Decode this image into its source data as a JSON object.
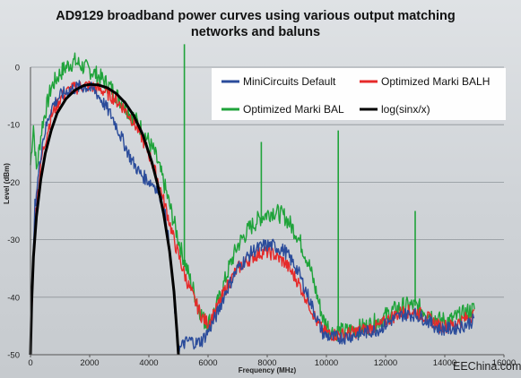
{
  "chart_data": {
    "type": "line",
    "title_lines": [
      "AD9129 broadband power curves using various output matching",
      "networks and baluns"
    ],
    "xlabel": "Frequency (MHz)",
    "ylabel": "Level (dBm)",
    "xlim": [
      0,
      16000
    ],
    "ylim": [
      -50,
      0
    ],
    "x_ticks": [
      "0",
      "2000",
      "4000",
      "6000",
      "8000",
      "10000",
      "12000",
      "14000",
      "16000"
    ],
    "y_ticks": [
      "0",
      "-10",
      "-20",
      "-30",
      "-40",
      "-50"
    ],
    "grid": "horizontal",
    "legend_position": "top-right",
    "series": [
      {
        "name": "MiniCircuits Default",
        "color": "#2b4c9b",
        "noise": 0.6,
        "points": [
          [
            0,
            -50
          ],
          [
            150,
            -24
          ],
          [
            400,
            -13
          ],
          [
            700,
            -7
          ],
          [
            1000,
            -5
          ],
          [
            1300,
            -4
          ],
          [
            1600,
            -3.5
          ],
          [
            1900,
            -3.4
          ],
          [
            2200,
            -4.2
          ],
          [
            2500,
            -6.5
          ],
          [
            2800,
            -9
          ],
          [
            3100,
            -12.5
          ],
          [
            3400,
            -16
          ],
          [
            3700,
            -18.5
          ],
          [
            4000,
            -19.8
          ],
          [
            4200,
            -20.5
          ],
          [
            4400,
            -22.5
          ],
          [
            4600,
            -27
          ],
          [
            4800,
            -37
          ],
          [
            4950,
            -47
          ],
          [
            5050,
            -49
          ],
          [
            5200,
            -48
          ],
          [
            5400,
            -47.5
          ],
          [
            5600,
            -48
          ],
          [
            5800,
            -47.5
          ],
          [
            6000,
            -46
          ],
          [
            6300,
            -43
          ],
          [
            6600,
            -39
          ],
          [
            7000,
            -35
          ],
          [
            7500,
            -32
          ],
          [
            7900,
            -31
          ],
          [
            8200,
            -31
          ],
          [
            8600,
            -32
          ],
          [
            9000,
            -35
          ],
          [
            9400,
            -40
          ],
          [
            9700,
            -44
          ],
          [
            9900,
            -46.5
          ],
          [
            10200,
            -47
          ],
          [
            10600,
            -47
          ],
          [
            11000,
            -46.5
          ],
          [
            11400,
            -46
          ],
          [
            11800,
            -45.5
          ],
          [
            12200,
            -44
          ],
          [
            12600,
            -43
          ],
          [
            13000,
            -43
          ],
          [
            13400,
            -44
          ],
          [
            13800,
            -45.5
          ],
          [
            14200,
            -45.5
          ],
          [
            14600,
            -45
          ],
          [
            15000,
            -44
          ]
        ],
        "spikes": [
          [
            5200,
            -47.5
          ],
          [
            7800,
            -32
          ],
          [
            10400,
            -47
          ]
        ]
      },
      {
        "name": "Optimized Marki BALH",
        "color": "#e62a2a",
        "noise": 0.6,
        "points": [
          [
            0,
            -50
          ],
          [
            150,
            -26
          ],
          [
            400,
            -15
          ],
          [
            700,
            -8.5
          ],
          [
            1000,
            -5.5
          ],
          [
            1300,
            -4
          ],
          [
            1600,
            -3.5
          ],
          [
            1900,
            -3.2
          ],
          [
            2200,
            -3.6
          ],
          [
            2500,
            -4.2
          ],
          [
            2800,
            -5.3
          ],
          [
            3100,
            -6.8
          ],
          [
            3400,
            -8.8
          ],
          [
            3700,
            -11.5
          ],
          [
            4000,
            -15
          ],
          [
            4300,
            -19.5
          ],
          [
            4600,
            -25
          ],
          [
            4900,
            -31
          ],
          [
            5200,
            -36
          ],
          [
            5500,
            -40
          ],
          [
            5800,
            -43.5
          ],
          [
            6000,
            -44.5
          ],
          [
            6300,
            -42
          ],
          [
            6600,
            -38.5
          ],
          [
            7000,
            -35
          ],
          [
            7500,
            -33
          ],
          [
            7900,
            -32
          ],
          [
            8200,
            -32.5
          ],
          [
            8600,
            -34
          ],
          [
            9000,
            -37
          ],
          [
            9400,
            -41
          ],
          [
            9700,
            -44.5
          ],
          [
            9900,
            -46
          ],
          [
            10200,
            -46.5
          ],
          [
            10600,
            -46.5
          ],
          [
            11000,
            -46
          ],
          [
            11400,
            -45.5
          ],
          [
            11800,
            -45
          ],
          [
            12200,
            -43.5
          ],
          [
            12600,
            -42.5
          ],
          [
            13000,
            -42.5
          ],
          [
            13400,
            -43.5
          ],
          [
            13800,
            -45
          ],
          [
            14200,
            -45
          ],
          [
            14600,
            -44
          ],
          [
            15000,
            -43
          ]
        ],
        "spikes": []
      },
      {
        "name": "Optimized Marki BAL",
        "color": "#1fa33a",
        "noise": 0.8,
        "points": [
          [
            0,
            -17
          ],
          [
            100,
            -10
          ],
          [
            200,
            -18
          ],
          [
            400,
            -10
          ],
          [
            700,
            -3.5
          ],
          [
            1000,
            -1
          ],
          [
            1300,
            0.5
          ],
          [
            1500,
            1
          ],
          [
            1800,
            0
          ],
          [
            2100,
            -0.8
          ],
          [
            2400,
            -2
          ],
          [
            2700,
            -3.5
          ],
          [
            3000,
            -5.5
          ],
          [
            3300,
            -7.5
          ],
          [
            3600,
            -9.5
          ],
          [
            3900,
            -12
          ],
          [
            4200,
            -15
          ],
          [
            4500,
            -20
          ],
          [
            4800,
            -26
          ],
          [
            5100,
            -32
          ],
          [
            5400,
            -37
          ],
          [
            5700,
            -42
          ],
          [
            5900,
            -44.5
          ],
          [
            6100,
            -44
          ],
          [
            6400,
            -40
          ],
          [
            6700,
            -35
          ],
          [
            7000,
            -31
          ],
          [
            7400,
            -28
          ],
          [
            7800,
            -26
          ],
          [
            8200,
            -25
          ],
          [
            8600,
            -26
          ],
          [
            9000,
            -29
          ],
          [
            9400,
            -34
          ],
          [
            9700,
            -40
          ],
          [
            9900,
            -44
          ],
          [
            10200,
            -46
          ],
          [
            10600,
            -46
          ],
          [
            11000,
            -45.5
          ],
          [
            11400,
            -45
          ],
          [
            11800,
            -44
          ],
          [
            12200,
            -42.5
          ],
          [
            12600,
            -41.5
          ],
          [
            13000,
            -41.5
          ],
          [
            13400,
            -42.5
          ],
          [
            13800,
            -44
          ],
          [
            14200,
            -44
          ],
          [
            14600,
            -43
          ],
          [
            15000,
            -42
          ]
        ],
        "spikes": [
          [
            5200,
            4
          ],
          [
            7800,
            -13
          ],
          [
            10400,
            -11
          ],
          [
            13000,
            -25
          ]
        ]
      },
      {
        "name": "log(sinx/x)",
        "color": "#000000",
        "noise": 0,
        "points": [
          [
            0,
            -50
          ],
          [
            40,
            -41
          ],
          [
            100,
            -33
          ],
          [
            200,
            -26
          ],
          [
            350,
            -19.5
          ],
          [
            500,
            -15
          ],
          [
            700,
            -11
          ],
          [
            900,
            -8
          ],
          [
            1200,
            -5.5
          ],
          [
            1500,
            -4
          ],
          [
            1800,
            -3.2
          ],
          [
            2000,
            -3
          ],
          [
            2300,
            -3.1
          ],
          [
            2600,
            -3.6
          ],
          [
            2900,
            -4.6
          ],
          [
            3200,
            -6.2
          ],
          [
            3500,
            -8.5
          ],
          [
            3800,
            -11.8
          ],
          [
            4100,
            -16.5
          ],
          [
            4300,
            -20.5
          ],
          [
            4500,
            -25.5
          ],
          [
            4700,
            -32
          ],
          [
            4850,
            -39
          ],
          [
            4950,
            -46
          ],
          [
            5000,
            -50
          ]
        ],
        "spikes": []
      }
    ]
  },
  "watermark": "EEChina.com"
}
